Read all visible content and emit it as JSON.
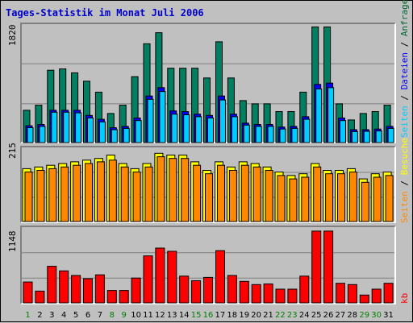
{
  "title": "Tages-Statistik im Monat Juli 2006",
  "scale": {
    "requests_max": "1820",
    "pages_max": "215",
    "kb_max": "1148"
  },
  "legend_right_top": [
    {
      "text": "Seiten",
      "color": "#00ccff"
    },
    {
      "text": " / ",
      "color": "#000000"
    },
    {
      "text": "Dateien",
      "color": "#0000ff"
    },
    {
      "text": " / ",
      "color": "#000000"
    },
    {
      "text": "Anfragen",
      "color": "#006633"
    }
  ],
  "legend_right_mid": [
    {
      "text": "Seiten",
      "color": "#ff8800"
    },
    {
      "text": " / ",
      "color": "#000000"
    },
    {
      "text": "Besuche",
      "color": "#ffff00"
    }
  ],
  "legend_right_bottom": [
    {
      "text": "kb",
      "color": "#ff0000"
    }
  ],
  "colors": {
    "background": "#c0c0c0",
    "anfragen": "#008060",
    "dateien": "#0000ff",
    "seiten_top": "#00ccff",
    "besuche": "#ffff00",
    "seiten_mid": "#ff8800",
    "kb": "#ff0000",
    "weekend_label": "#008000",
    "weekday_label": "#000000"
  },
  "chart_data": {
    "type": "bar",
    "categories": [
      "1",
      "2",
      "3",
      "4",
      "5",
      "6",
      "7",
      "8",
      "9",
      "10",
      "11",
      "12",
      "13",
      "14",
      "15",
      "16",
      "17",
      "18",
      "19",
      "20",
      "21",
      "22",
      "23",
      "24",
      "25",
      "26",
      "27",
      "28",
      "29",
      "30",
      "31"
    ],
    "weekend_days": [
      "1",
      "8",
      "9",
      "15",
      "16",
      "22",
      "23",
      "29",
      "30"
    ],
    "series_top": [
      {
        "name": "Anfragen",
        "values": [
          500,
          580,
          1120,
          1140,
          1080,
          950,
          780,
          450,
          580,
          1020,
          1530,
          1700,
          1150,
          1150,
          1150,
          1000,
          1560,
          1000,
          650,
          600,
          600,
          480,
          480,
          780,
          1790,
          1790,
          600,
          350,
          450,
          480,
          580
        ]
      },
      {
        "name": "Dateien",
        "values": [
          260,
          280,
          500,
          500,
          500,
          420,
          360,
          230,
          250,
          380,
          720,
          850,
          490,
          480,
          440,
          420,
          720,
          440,
          300,
          280,
          280,
          240,
          250,
          400,
          900,
          920,
          380,
          200,
          200,
          210,
          250
        ]
      },
      {
        "name": "Seiten",
        "values": [
          230,
          250,
          470,
          470,
          460,
          380,
          320,
          200,
          220,
          340,
          670,
          790,
          440,
          430,
          400,
          380,
          660,
          400,
          270,
          250,
          250,
          210,
          220,
          360,
          830,
          850,
          340,
          170,
          175,
          180,
          220
        ]
      }
    ],
    "series_mid": [
      {
        "name": "Besuche",
        "values": [
          155,
          160,
          165,
          170,
          175,
          180,
          185,
          195,
          170,
          155,
          170,
          200,
          195,
          195,
          175,
          150,
          175,
          160,
          175,
          170,
          160,
          145,
          135,
          140,
          170,
          150,
          150,
          155,
          125,
          140,
          145
        ]
      },
      {
        "name": "Seiten",
        "values": [
          145,
          150,
          155,
          160,
          165,
          170,
          175,
          180,
          160,
          145,
          160,
          190,
          185,
          185,
          165,
          140,
          165,
          150,
          165,
          160,
          150,
          135,
          125,
          130,
          160,
          140,
          140,
          145,
          115,
          130,
          135
        ]
      }
    ],
    "series_bottom": [
      {
        "name": "kb",
        "values": [
          320,
          180,
          560,
          490,
          420,
          370,
          430,
          190,
          190,
          380,
          720,
          840,
          790,
          410,
          340,
          390,
          800,
          420,
          330,
          280,
          290,
          210,
          210,
          410,
          1100,
          1100,
          300,
          280,
          120,
          210,
          300
        ]
      }
    ],
    "ylim_top": [
      0,
      1820
    ],
    "ylim_mid": [
      0,
      215
    ],
    "ylim_bottom": [
      0,
      1148
    ]
  }
}
